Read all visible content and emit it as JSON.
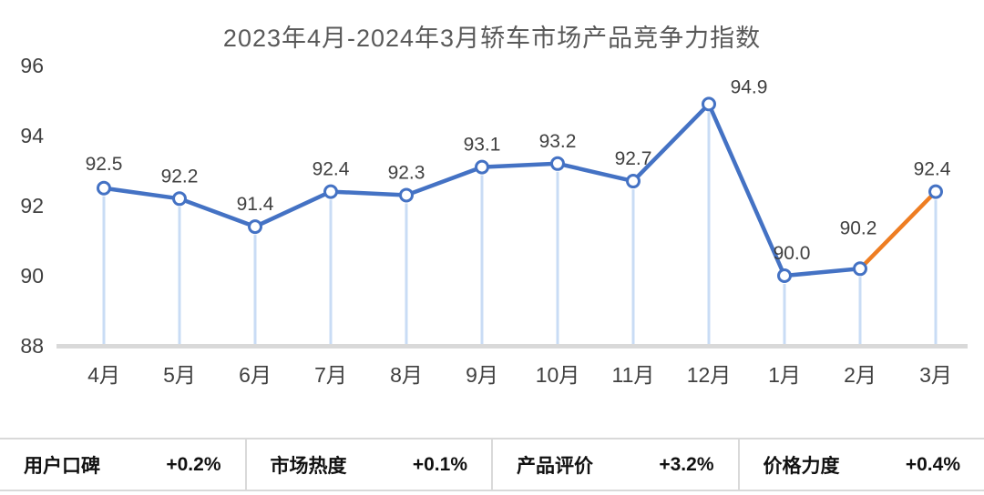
{
  "chart_data": {
    "type": "line",
    "title": "2023年4月-2024年3月轿车市场产品竞争力指数",
    "categories": [
      "4月",
      "5月",
      "6月",
      "7月",
      "8月",
      "9月",
      "10月",
      "11月",
      "12月",
      "1月",
      "2月",
      "3月"
    ],
    "values": [
      92.5,
      92.2,
      91.4,
      92.4,
      92.3,
      93.1,
      93.2,
      92.7,
      94.9,
      90.0,
      90.2,
      92.4
    ],
    "ylim": [
      88,
      96
    ],
    "yticks": [
      88,
      90,
      92,
      94,
      96
    ],
    "xlabel": "",
    "ylabel": "",
    "legend": "none",
    "grid": false,
    "marker": "open-circle",
    "drop_lines": true,
    "line_color": "#4472c4",
    "highlight_color": "#ee7d22",
    "highlight_segment": "2月-3月",
    "drop_line_color": "#c9dcf5",
    "axis_line_color": "#d9d9d9"
  },
  "stats": [
    {
      "label": "用户口碑",
      "value": "+0.2%"
    },
    {
      "label": "市场热度",
      "value": "+0.1%"
    },
    {
      "label": "产品评价",
      "value": "+3.2%"
    },
    {
      "label": "价格力度",
      "value": "+0.4%"
    }
  ]
}
